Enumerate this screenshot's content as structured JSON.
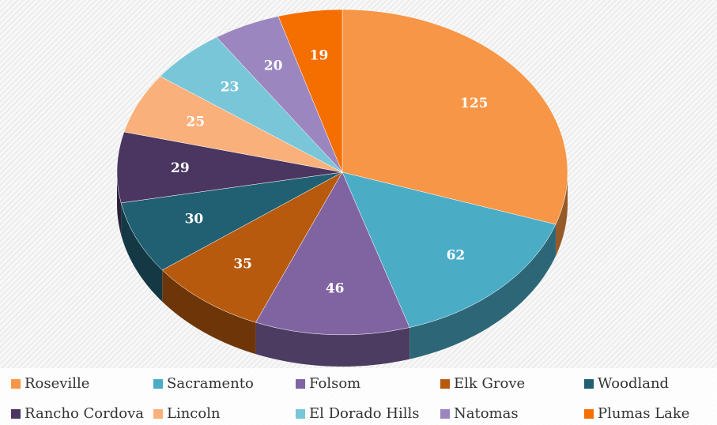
{
  "chart_data": {
    "type": "pie3d",
    "categories": [
      "Roseville",
      "Sacramento",
      "Folsom",
      "Elk Grove",
      "Woodland",
      "Rancho Cordova",
      "Lincoln",
      "El Dorado Hills",
      "Natomas",
      "Plumas Lake"
    ],
    "values": [
      125,
      62,
      46,
      35,
      30,
      29,
      25,
      23,
      20,
      19
    ],
    "colors": [
      "#f79646",
      "#4bacc6",
      "#8064a2",
      "#b85a0d",
      "#215f73",
      "#4a3660",
      "#fab07a",
      "#79c6d9",
      "#9c86bf",
      "#f56e00"
    ],
    "legend": "bottom"
  }
}
